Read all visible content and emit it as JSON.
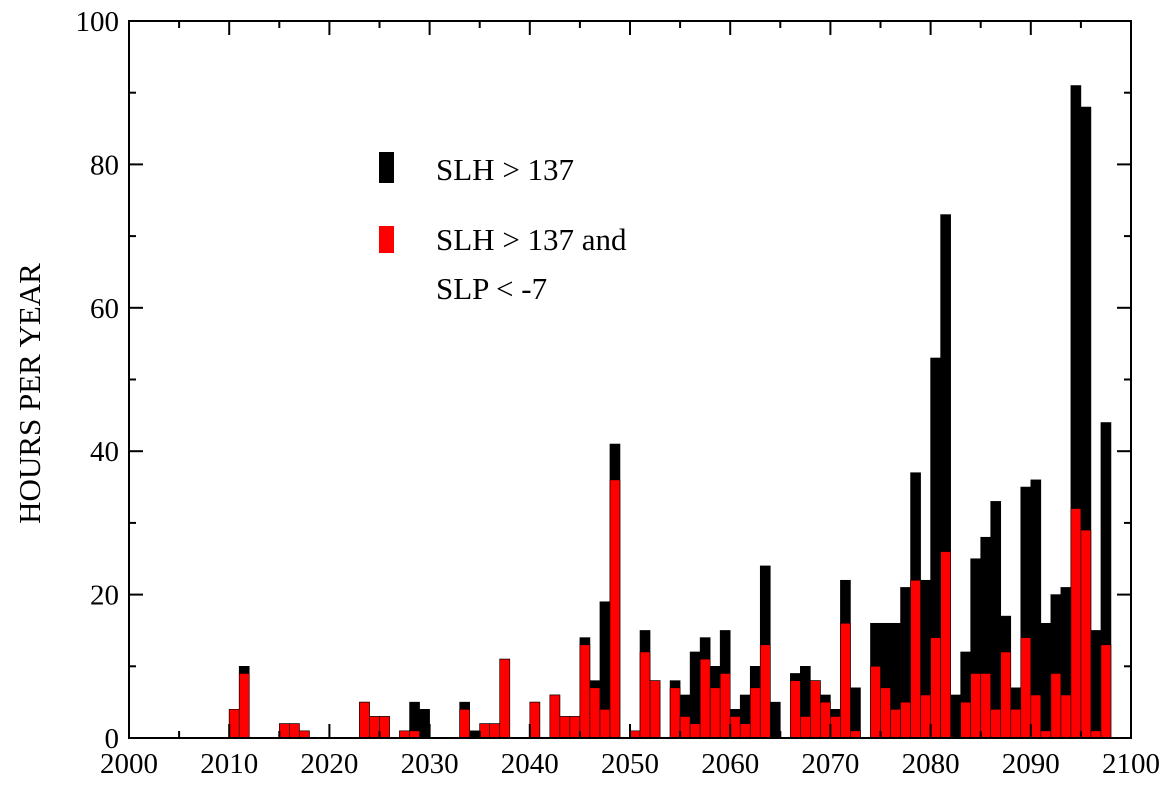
{
  "chart_data": {
    "type": "bar",
    "title": "",
    "xlabel": "",
    "ylabel": "HOURS PER YEAR",
    "xlim": [
      2000,
      2100
    ],
    "ylim": [
      0,
      100
    ],
    "xticks": [
      "2000",
      "2010",
      "2020",
      "2030",
      "2040",
      "2050",
      "2060",
      "2070",
      "2080",
      "2090",
      "2100"
    ],
    "yticks": [
      "0",
      "20",
      "40",
      "60",
      "80",
      "100"
    ],
    "grid": false,
    "legend_position": "upper-left",
    "legend": [
      {
        "label": "SLH > 137",
        "color": "#000000"
      },
      {
        "label_line1": "SLH > 137 and",
        "label_line2": "SLP < -7",
        "color": "#ff0000"
      }
    ],
    "x": [
      2001,
      2002,
      2003,
      2004,
      2005,
      2006,
      2007,
      2008,
      2009,
      2010,
      2011,
      2012,
      2013,
      2014,
      2015,
      2016,
      2017,
      2018,
      2019,
      2020,
      2021,
      2022,
      2023,
      2024,
      2025,
      2026,
      2027,
      2028,
      2029,
      2030,
      2031,
      2032,
      2033,
      2034,
      2035,
      2036,
      2037,
      2038,
      2039,
      2040,
      2041,
      2042,
      2043,
      2044,
      2045,
      2046,
      2047,
      2048,
      2049,
      2050,
      2051,
      2052,
      2053,
      2054,
      2055,
      2056,
      2057,
      2058,
      2059,
      2060,
      2061,
      2062,
      2063,
      2064,
      2065,
      2066,
      2067,
      2068,
      2069,
      2070,
      2071,
      2072,
      2073,
      2074,
      2075,
      2076,
      2077,
      2078,
      2079,
      2080,
      2081,
      2082,
      2083,
      2084,
      2085,
      2086,
      2087,
      2088,
      2089,
      2090,
      2091,
      2092,
      2093,
      2094,
      2095,
      2096,
      2097,
      2098,
      2099,
      2100
    ],
    "series": [
      {
        "name": "SLH > 137",
        "color": "#000000",
        "values": [
          0,
          0,
          0,
          0,
          0,
          0,
          0,
          0,
          0,
          0,
          4,
          10,
          0,
          0,
          0,
          2,
          2,
          1,
          0,
          0,
          0,
          0,
          0,
          5,
          3,
          3,
          0,
          1,
          5,
          4,
          0,
          0,
          0,
          5,
          1,
          2,
          2,
          11,
          0,
          0,
          5,
          0,
          6,
          3,
          3,
          14,
          8,
          19,
          41,
          0,
          1,
          15,
          8,
          0,
          8,
          6,
          12,
          14,
          10,
          15,
          4,
          6,
          10,
          24,
          5,
          0,
          9,
          10,
          8,
          6,
          4,
          22,
          7,
          0,
          16,
          16,
          16,
          21,
          37,
          22,
          53,
          73,
          6,
          12,
          25,
          28,
          33,
          17,
          7,
          35,
          36,
          16,
          20,
          21,
          91,
          88,
          15,
          44,
          0,
          0
        ]
      },
      {
        "name": "SLH > 137 and SLP < -7",
        "color": "#ff0000",
        "values": [
          0,
          0,
          0,
          0,
          0,
          0,
          0,
          0,
          0,
          0,
          4,
          9,
          0,
          0,
          0,
          2,
          2,
          1,
          0,
          0,
          0,
          0,
          0,
          5,
          3,
          3,
          0,
          1,
          1,
          0,
          0,
          0,
          0,
          4,
          0,
          2,
          2,
          11,
          0,
          0,
          5,
          0,
          6,
          3,
          3,
          13,
          7,
          4,
          36,
          0,
          1,
          12,
          8,
          0,
          7,
          3,
          2,
          11,
          7,
          9,
          3,
          2,
          7,
          13,
          0,
          0,
          8,
          3,
          8,
          5,
          3,
          16,
          1,
          0,
          10,
          7,
          4,
          5,
          22,
          6,
          14,
          26,
          0,
          5,
          9,
          9,
          4,
          12,
          4,
          14,
          6,
          1,
          9,
          6,
          32,
          29,
          1,
          13,
          0,
          0
        ]
      }
    ]
  }
}
